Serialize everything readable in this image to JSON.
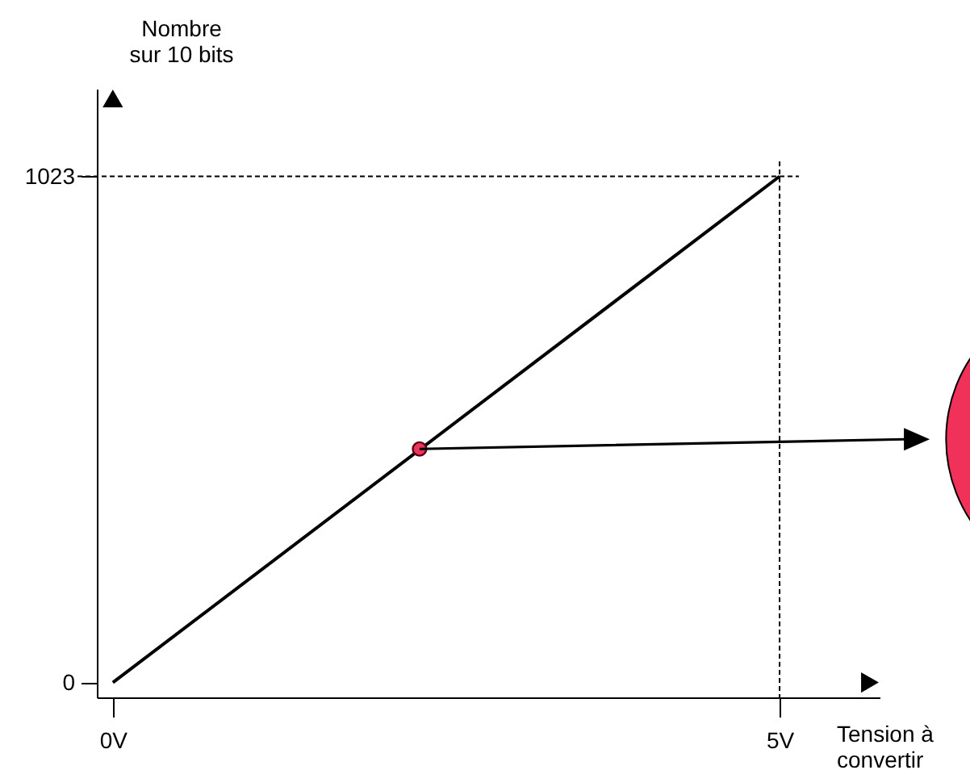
{
  "chart_data": {
    "type": "line",
    "xlabel": "Tension à convertir",
    "ylabel": "Nombre sur 10 bits",
    "xlim": [
      -0.12,
      5.75
    ],
    "ylim": [
      -30,
      1200
    ],
    "xticks": [
      {
        "value": 0,
        "label": "0V"
      },
      {
        "value": 5,
        "label": "5V"
      }
    ],
    "yticks": [
      0,
      1023
    ],
    "grid": false,
    "series": [
      {
        "color": "#000000",
        "x": [
          0,
          5
        ],
        "values": [
          0,
          1023
        ],
        "marker": "none",
        "line_style": "solid"
      },
      {
        "type": "scatter",
        "color": "#e8365d",
        "x": [
          2.3
        ],
        "values": [
          472
        ],
        "marker": "circle"
      }
    ],
    "ref_lines": [
      {
        "axis": "y",
        "value": 1023,
        "line_style": "dashed",
        "color": "#000000"
      },
      {
        "axis": "x",
        "value": 5,
        "line_style": "dashed",
        "color": "#000000"
      }
    ]
  }
}
